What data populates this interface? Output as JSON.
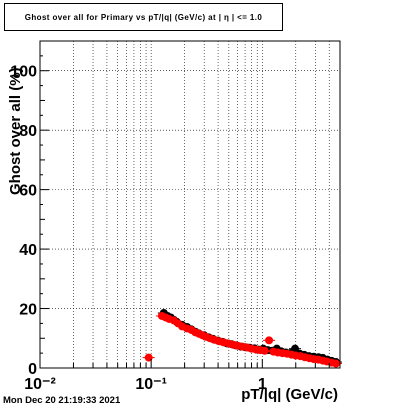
{
  "title": "Ghost over all for Primary vs pT/|q| (GeV/c) at | η | <= 1.0",
  "datestamp": "Mon Dec 20 21:19:33 2021",
  "chart_data": {
    "type": "scatter",
    "title": "Ghost over all for Primary vs pT/|q| (GeV/c) at | η | <= 1.0",
    "xlabel": "pT/|q| (GeV/c)",
    "ylabel": "Ghost over all (%)",
    "x_scale": "log",
    "xlim": [
      0.01,
      5
    ],
    "ylim": [
      0,
      110
    ],
    "x_tick_labels": [
      "10⁻²",
      "10⁻¹",
      "1"
    ],
    "y_tick_labels": [
      "0",
      "20",
      "40",
      "60",
      "80",
      "100"
    ],
    "grid": true,
    "series": [
      {
        "color": "#000000",
        "x": [
          0.13,
          0.14,
          0.15,
          0.16,
          0.17,
          0.19,
          0.21,
          0.23,
          0.25,
          0.27,
          0.3,
          0.33,
          0.36,
          0.4,
          0.44,
          0.48,
          0.53,
          0.58,
          0.64,
          0.7,
          0.77,
          0.85,
          0.93,
          1.02,
          1.12,
          1.23,
          1.35,
          1.48,
          1.63,
          1.79,
          1.97,
          2.17,
          2.39,
          2.63,
          2.9,
          3.2,
          3.5,
          3.85,
          4.2,
          4.6
        ],
        "y": [
          18.5,
          17.5,
          17.0,
          16.2,
          15.5,
          14.5,
          13.8,
          13.0,
          12.2,
          11.6,
          11.0,
          10.3,
          9.8,
          9.2,
          8.8,
          8.3,
          8.0,
          7.6,
          7.2,
          7.0,
          6.8,
          6.6,
          6.2,
          6.5,
          6.0,
          5.8,
          6.5,
          5.6,
          5.2,
          5.0,
          6.5,
          4.8,
          4.4,
          4.0,
          3.8,
          3.6,
          3.4,
          2.8,
          2.4,
          2.0
        ]
      },
      {
        "color": "#ff0000",
        "x": [
          0.095,
          0.125,
          0.135,
          0.145,
          0.16,
          0.175,
          0.19,
          0.21,
          0.23,
          0.25,
          0.27,
          0.29,
          0.31,
          0.34,
          0.37,
          0.41,
          0.45,
          0.5,
          0.55,
          0.6,
          0.66,
          0.73,
          0.8,
          0.88,
          0.96,
          1.05,
          1.15,
          1.26,
          1.38,
          1.52,
          1.67,
          1.83,
          2.0,
          2.2,
          2.42,
          2.65,
          2.9,
          3.2,
          3.5,
          3.8,
          4.2,
          4.6
        ],
        "y": [
          3.5,
          17.5,
          17.0,
          16.5,
          16.0,
          15.0,
          14.0,
          13.3,
          12.8,
          12.0,
          11.5,
          11.0,
          10.5,
          10.0,
          9.5,
          9.0,
          8.6,
          8.2,
          7.8,
          7.5,
          7.2,
          6.9,
          6.5,
          6.2,
          6.0,
          5.8,
          9.3,
          5.5,
          5.2,
          5.0,
          4.8,
          4.5,
          4.2,
          4.0,
          3.6,
          3.3,
          3.0,
          2.8,
          2.5,
          2.2,
          1.8,
          1.5
        ]
      }
    ]
  }
}
